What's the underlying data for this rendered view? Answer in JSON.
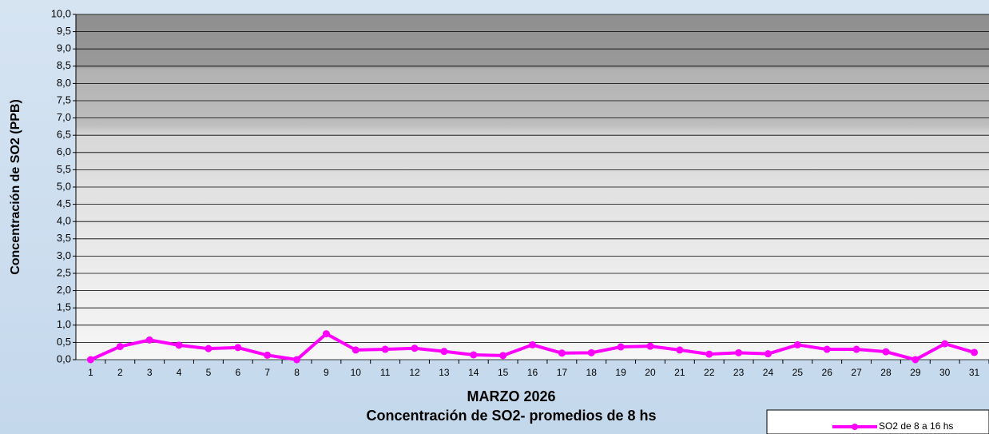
{
  "chart_data": {
    "type": "line",
    "title": "MARZO 2026",
    "subtitle": "Concentración de SO2- promedios de 8 hs",
    "y_label": "Concentración de SO2  (PPB)",
    "categories": [
      "1",
      "2",
      "3",
      "4",
      "5",
      "6",
      "7",
      "8",
      "9",
      "10",
      "11",
      "12",
      "13",
      "14",
      "15",
      "16",
      "17",
      "18",
      "19",
      "20",
      "21",
      "22",
      "23",
      "24",
      "25",
      "26",
      "27",
      "28",
      "29",
      "30",
      "31"
    ],
    "series": [
      {
        "name": "SO2 de 8 a 16 hs",
        "color": "#ff00ff",
        "values": [
          0.0,
          0.38,
          0.57,
          0.42,
          0.32,
          0.35,
          0.13,
          0.0,
          0.75,
          0.28,
          0.3,
          0.33,
          0.24,
          0.14,
          0.12,
          0.43,
          0.19,
          0.2,
          0.37,
          0.39,
          0.28,
          0.16,
          0.2,
          0.17,
          0.43,
          0.3,
          0.3,
          0.23,
          0.0,
          0.46,
          0.21
        ]
      }
    ],
    "ylim": [
      0,
      10
    ],
    "yticks": [
      {
        "value": 0,
        "label": "0,0"
      },
      {
        "value": 0.5,
        "label": "0,5"
      },
      {
        "value": 1,
        "label": "1,0"
      },
      {
        "value": 1.5,
        "label": "1,5"
      },
      {
        "value": 2,
        "label": "2,0"
      },
      {
        "value": 2.5,
        "label": "2,5"
      },
      {
        "value": 3,
        "label": "3,0"
      },
      {
        "value": 3.5,
        "label": "3,5"
      },
      {
        "value": 4,
        "label": "4,0"
      },
      {
        "value": 4.5,
        "label": "4,5"
      },
      {
        "value": 5,
        "label": "5,0"
      },
      {
        "value": 5.5,
        "label": "5,5"
      },
      {
        "value": 6,
        "label": "6,0"
      },
      {
        "value": 6.5,
        "label": "6,5"
      },
      {
        "value": 7,
        "label": "7,0"
      },
      {
        "value": 7.5,
        "label": "7,5"
      },
      {
        "value": 8,
        "label": "8,0"
      },
      {
        "value": 8.5,
        "label": "8,5"
      },
      {
        "value": 9,
        "label": "9,0"
      },
      {
        "value": 9.5,
        "label": "9,5"
      },
      {
        "value": 10,
        "label": "10,0"
      }
    ],
    "grid": true
  }
}
